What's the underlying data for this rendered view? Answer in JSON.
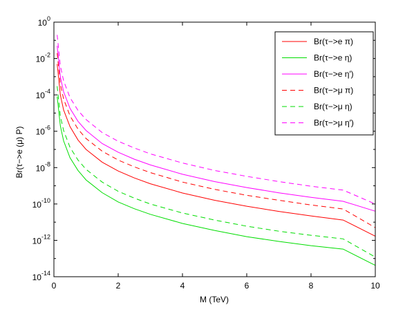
{
  "chart_data": {
    "type": "line",
    "title": "",
    "xlabel": "M (TeV)",
    "ylabel": "Br(τ−>e (μ) P)",
    "xlim": [
      0,
      10
    ],
    "ylim_log10": [
      -14,
      0
    ],
    "y_scale": "log",
    "grid": false,
    "legend_position": "top-right",
    "x_ticks": [
      {
        "value": 0,
        "label": "0"
      },
      {
        "value": 2,
        "label": "2"
      },
      {
        "value": 4,
        "label": "4"
      },
      {
        "value": 6,
        "label": "6"
      },
      {
        "value": 8,
        "label": "8"
      },
      {
        "value": 10,
        "label": "10"
      }
    ],
    "y_ticks": [
      {
        "exp": 0,
        "base": "10",
        "sup": "0"
      },
      {
        "exp": -2,
        "base": "10",
        "sup": "-2"
      },
      {
        "exp": -4,
        "base": "10",
        "sup": "-4"
      },
      {
        "exp": -6,
        "base": "10",
        "sup": "-6"
      },
      {
        "exp": -8,
        "base": "10",
        "sup": "-8"
      },
      {
        "exp": -10,
        "base": "10",
        "sup": "-10"
      },
      {
        "exp": -12,
        "base": "10",
        "sup": "-12"
      },
      {
        "exp": -14,
        "base": "10",
        "sup": "-14"
      }
    ],
    "x": [
      0.1,
      0.2,
      0.3,
      0.5,
      0.75,
      1,
      1.5,
      2,
      2.5,
      3,
      4,
      5,
      6,
      7,
      8,
      9,
      10
    ],
    "series": [
      {
        "name": "Br(τ−>e π)",
        "color": "#ff0000",
        "dash": "solid",
        "values": [
          0.005,
          0.0001,
          1.5e-05,
          1.8e-06,
          3.3e-07,
          1e-07,
          2e-08,
          6.5e-09,
          2.7e-09,
          1.3e-09,
          4e-10,
          1.6e-10,
          7.5e-11,
          3.9e-11,
          2.2e-11,
          1.3e-11,
          1.7e-12
        ]
      },
      {
        "name": "Br(τ−>e η)",
        "color": "#00dd00",
        "dash": "solid",
        "values": [
          8e-05,
          2e-06,
          3e-07,
          3.5e-08,
          7e-09,
          2.1e-09,
          4.2e-10,
          1.3e-10,
          5.5e-11,
          2.7e-11,
          8.5e-12,
          3.5e-12,
          1.6e-12,
          8.7e-13,
          5.1e-13,
          3.3e-13,
          4.2e-14
        ]
      },
      {
        "name": "Br(τ−>e η′)",
        "color": "#ff00ff",
        "dash": "solid",
        "values": [
          0.05,
          0.001,
          0.00015,
          1.8e-05,
          3.5e-06,
          1.1e-06,
          2.1e-07,
          7e-08,
          2.9e-08,
          1.4e-08,
          4.3e-09,
          1.7e-09,
          8e-10,
          4.1e-10,
          2.3e-10,
          1.4e-10,
          4e-11
        ]
      },
      {
        "name": "Br(τ−>μ π)",
        "color": "#ff0000",
        "dash": "dashed",
        "values": [
          0.02,
          0.0004,
          6e-05,
          7e-06,
          1.3e-06,
          4e-07,
          8e-08,
          2.6e-08,
          1.1e-08,
          5.3e-09,
          1.6e-09,
          6.4e-10,
          3e-10,
          1.6e-10,
          8.8e-11,
          5.3e-11,
          5e-12
        ]
      },
      {
        "name": "Br(τ−>μ η)",
        "color": "#00dd00",
        "dash": "dashed",
        "values": [
          0.0003,
          7e-06,
          1.1e-06,
          1.3e-07,
          2.6e-08,
          8e-09,
          1.6e-09,
          5e-10,
          2.1e-10,
          1e-10,
          3.2e-11,
          1.3e-11,
          6e-12,
          3.2e-12,
          1.9e-12,
          1.2e-12,
          1.2e-13
        ]
      },
      {
        "name": "Br(τ−>μ η′)",
        "color": "#ff00ff",
        "dash": "dashed",
        "values": [
          0.2,
          0.004,
          0.0006,
          7e-05,
          1.4e-05,
          4.4e-06,
          8.5e-07,
          2.8e-07,
          1.2e-07,
          5.7e-08,
          1.8e-08,
          7e-09,
          3.3e-09,
          1.7e-09,
          9.5e-10,
          5.8e-10,
          1e-10
        ]
      }
    ],
    "legend_entries": [
      {
        "label": "Br(τ−>e π)"
      },
      {
        "label": "Br(τ−>e η)"
      },
      {
        "label": "Br(τ−>e η′)"
      },
      {
        "label": "Br(τ−>μ π)"
      },
      {
        "label": "Br(τ−>μ η)"
      },
      {
        "label": "Br(τ−>μ η′)"
      }
    ]
  }
}
